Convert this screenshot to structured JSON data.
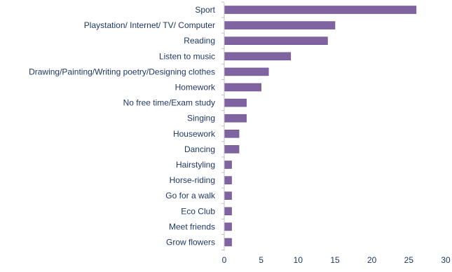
{
  "chart_data": {
    "type": "bar",
    "orientation": "horizontal",
    "categories": [
      "Sport",
      "Playstation/ Internet/ TV/ Computer",
      "Reading",
      "Listen to music",
      "Drawing/Painting/Writing poetry/Designing clothes",
      "Homework",
      "No free time/Exam study",
      "Singing",
      "Housework",
      "Dancing",
      "Hairstyling",
      "Horse-riding",
      "Go for a walk",
      "Eco Club",
      "Meet friends",
      "Grow flowers"
    ],
    "values": [
      26,
      15,
      14,
      9,
      6,
      5,
      3,
      3,
      2,
      2,
      1,
      1,
      1,
      1,
      1,
      1
    ],
    "title": "",
    "xlabel": "",
    "ylabel": "",
    "xlim": [
      0,
      30
    ],
    "xticks": [
      "0",
      "5",
      "10",
      "15",
      "20",
      "25",
      "30"
    ],
    "grid": false,
    "legend": "none",
    "bar_color": "#8064A2",
    "bar_edge_color": "#6A5288",
    "text_color": "#1F3864",
    "axis_color": "#BFBFBF"
  }
}
